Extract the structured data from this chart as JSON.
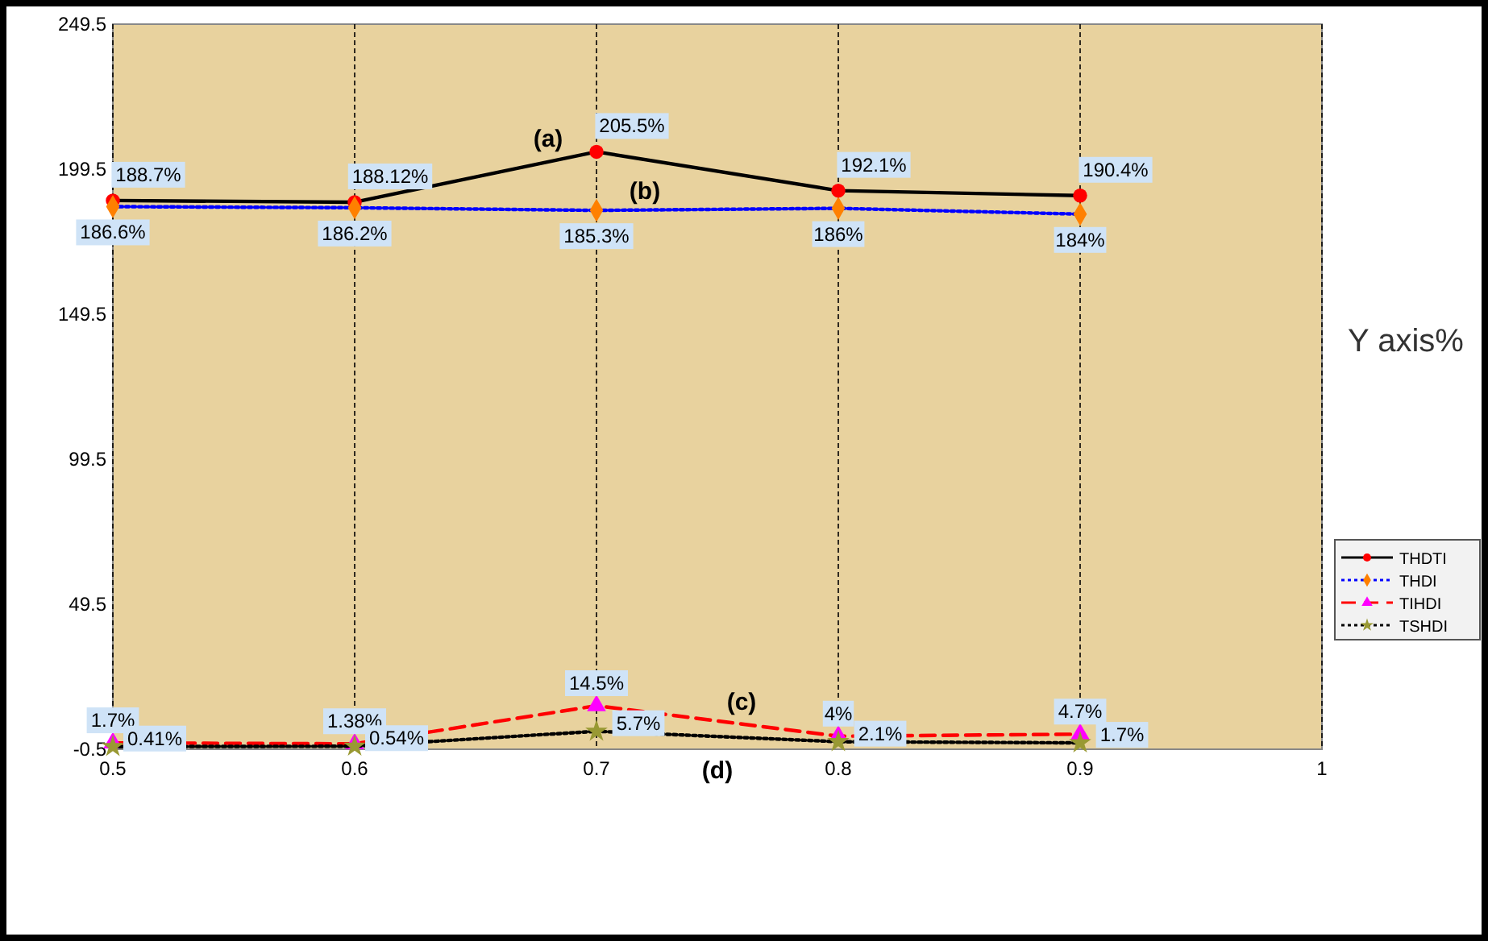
{
  "chart_data": {
    "type": "line",
    "ylabel": "Y axis%",
    "x": [
      0.5,
      0.6,
      0.7,
      0.8,
      0.9
    ],
    "xlim": [
      0.5,
      1
    ],
    "xticks": [
      0.5,
      0.6,
      0.7,
      0.8,
      0.9,
      1
    ],
    "ylim": [
      -0.5,
      249.5
    ],
    "yticks": [
      -0.5,
      49.5,
      99.5,
      149.5,
      199.5,
      249.5
    ],
    "grid": "x",
    "legend": "right",
    "series": [
      {
        "name": "THDTI",
        "color": "#000000",
        "colors": [
          "#ff0000",
          "#ff0000",
          "#ff0000",
          "#ff0000",
          "#ff0000"
        ],
        "marker": "circle",
        "line_style": "solid",
        "values": [
          188.7,
          188.12,
          205.5,
          192.1,
          190.4
        ],
        "value_labels": [
          "188.7%",
          "188.12%",
          "205.5%",
          "192.1%",
          "190.4%"
        ]
      },
      {
        "name": "THDI",
        "color": "#0000ff",
        "colors": [
          "#ff8000",
          "#ff8000",
          "#ff8000",
          "#ff8000",
          "#ff8000"
        ],
        "marker": "diamond",
        "line_style": "dotted",
        "values": [
          186.6,
          186.2,
          185.3,
          186,
          184
        ],
        "value_labels": [
          "186.6%",
          "186.2%",
          "185.3%",
          "186%",
          "184%"
        ]
      },
      {
        "name": "TIHDI",
        "color": "#ff0000",
        "colors": [
          "#ff00ff",
          "#ff00ff",
          "#ff00ff",
          "#ff00ff",
          "#ff00ff"
        ],
        "marker": "triangle",
        "line_style": "dashed",
        "values": [
          1.7,
          1.38,
          14.5,
          4,
          4.7
        ],
        "value_labels": [
          "1.7%",
          "1.38%",
          "14.5%",
          "4%",
          "4.7%"
        ]
      },
      {
        "name": "TSHDI",
        "color": "#000000",
        "colors": [
          "#999933",
          "#999933",
          "#999933",
          "#999933",
          "#999933"
        ],
        "marker": "star",
        "line_style": "dotted",
        "values": [
          0.41,
          0.54,
          5.7,
          2.1,
          1.7
        ],
        "value_labels": [
          "0.41%",
          "0.54%",
          "5.7%",
          "2.1%",
          "1.7%"
        ]
      }
    ],
    "annotations": [
      "(a)",
      "(b)",
      "(c)",
      "(d)"
    ]
  }
}
